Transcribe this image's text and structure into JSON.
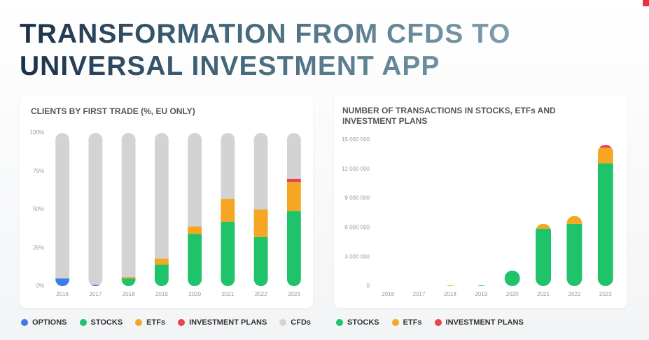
{
  "header": {
    "title": "TRANSFORMATION FROM CFDS TO UNIVERSAL INVESTMENT APP"
  },
  "chart_data": [
    {
      "type": "bar",
      "title": "CLIENTS BY FIRST TRADE (%, EU ONLY)",
      "categories": [
        "2016",
        "2017",
        "2018",
        "2019",
        "2020",
        "2021",
        "2022",
        "2023"
      ],
      "series": [
        {
          "name": "OPTIONS",
          "color": "#3b7de8",
          "values": [
            5,
            1,
            0,
            0,
            0,
            0,
            0,
            0
          ]
        },
        {
          "name": "STOCKS",
          "color": "#1ec36a",
          "values": [
            0,
            0,
            5,
            14,
            34,
            42,
            32,
            49
          ]
        },
        {
          "name": "ETFs",
          "color": "#f5a623",
          "values": [
            0,
            0,
            1,
            4,
            5,
            15,
            18,
            19
          ]
        },
        {
          "name": "INVESTMENT PLANS",
          "color": "#e84350",
          "values": [
            0,
            0,
            0,
            0,
            0,
            0,
            0,
            2
          ]
        },
        {
          "name": "CFDs",
          "color": "#d3d3d3",
          "values": [
            95,
            99,
            94,
            82,
            61,
            43,
            50,
            30
          ]
        }
      ],
      "ylim": [
        0,
        100
      ],
      "yticks": [
        {
          "value": 0,
          "label": "0%"
        },
        {
          "value": 25,
          "label": "25%"
        },
        {
          "value": 50,
          "label": "50%"
        },
        {
          "value": 75,
          "label": "75%"
        },
        {
          "value": 100,
          "label": "100%"
        }
      ],
      "stacked": true
    },
    {
      "type": "bar",
      "title": "NUMBER OF TRANSACTIONS IN STOCKS, ETFs AND INVESTMENT PLANS",
      "categories": [
        "2016",
        "2017",
        "2018",
        "2019",
        "2020",
        "2021",
        "2022",
        "2023"
      ],
      "series": [
        {
          "name": "STOCKS",
          "color": "#1ec36a",
          "values": [
            0,
            0,
            0,
            100000,
            1600000,
            5900000,
            6400000,
            12600000
          ]
        },
        {
          "name": "ETFs",
          "color": "#f5a623",
          "values": [
            0,
            0,
            100000,
            0,
            0,
            500000,
            800000,
            1600000
          ]
        },
        {
          "name": "INVESTMENT PLANS",
          "color": "#e84350",
          "values": [
            0,
            0,
            0,
            0,
            0,
            0,
            0,
            300000
          ]
        }
      ],
      "ylim": [
        0,
        15000000
      ],
      "yticks": [
        0,
        {
          "value": 3000000,
          "label": "3 000 000"
        },
        {
          "value": 6000000,
          "label": "6 000 000"
        },
        {
          "value": 9000000,
          "label": "9 000 000"
        },
        {
          "value": 12000000,
          "label": "12 000 000"
        },
        {
          "value": 15000000,
          "label": "15 000 000"
        }
      ],
      "stacked": true
    }
  ]
}
